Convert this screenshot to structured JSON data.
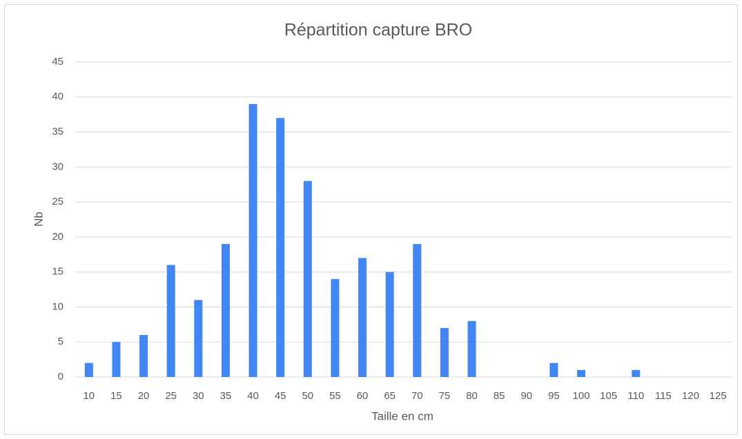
{
  "chart_data": {
    "type": "bar",
    "title": "Répartition capture BRO",
    "xlabel": "Taille en cm",
    "ylabel": "Nb",
    "categories": [
      "10",
      "15",
      "20",
      "25",
      "30",
      "35",
      "40",
      "45",
      "50",
      "55",
      "60",
      "65",
      "70",
      "75",
      "80",
      "85",
      "90",
      "95",
      "100",
      "105",
      "110",
      "115",
      "120",
      "125"
    ],
    "values": [
      2,
      5,
      6,
      16,
      11,
      19,
      39,
      37,
      28,
      14,
      17,
      15,
      19,
      7,
      8,
      0,
      0,
      2,
      1,
      0,
      1,
      0,
      0,
      0
    ],
    "color": "#4285f4",
    "ylim": [
      0,
      45
    ],
    "yticks": [
      0,
      5,
      10,
      15,
      20,
      25,
      30,
      35,
      40,
      45
    ],
    "grid": true
  }
}
